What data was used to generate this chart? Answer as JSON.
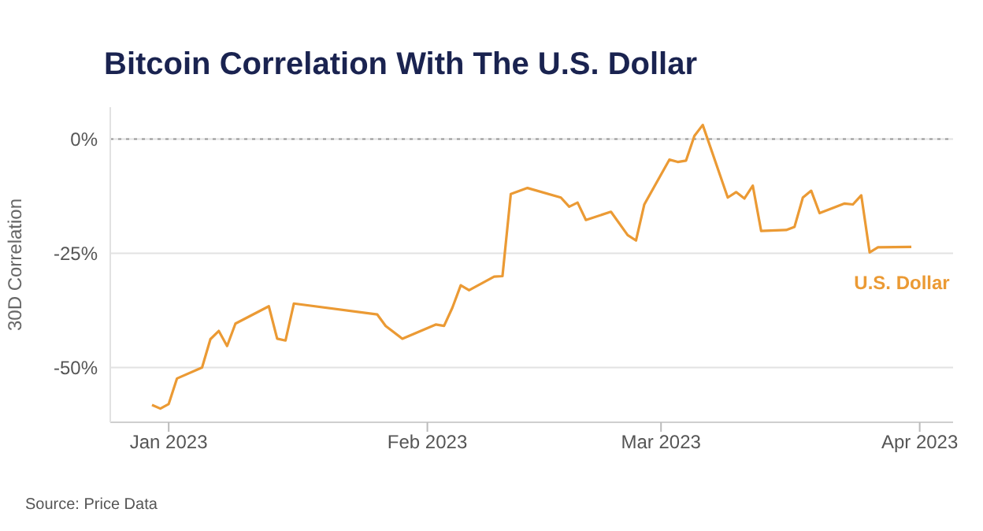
{
  "chart_data": {
    "type": "line",
    "title": "Bitcoin Correlation With The U.S. Dollar",
    "ylabel": "30D Correlation",
    "annotations": [
      "Source: Price Data"
    ],
    "x": [
      "2022-12-30",
      "2022-12-31",
      "2023-01-01",
      "2023-01-02",
      "2023-01-05",
      "2023-01-06",
      "2023-01-07",
      "2023-01-08",
      "2023-01-09",
      "2023-01-13",
      "2023-01-14",
      "2023-01-15",
      "2023-01-16",
      "2023-01-26",
      "2023-01-27",
      "2023-01-29",
      "2023-02-02",
      "2023-02-03",
      "2023-02-04",
      "2023-02-05",
      "2023-02-06",
      "2023-02-09",
      "2023-02-10",
      "2023-02-11",
      "2023-02-13",
      "2023-02-17",
      "2023-02-18",
      "2023-02-19",
      "2023-02-20",
      "2023-02-23",
      "2023-02-25",
      "2023-02-26",
      "2023-02-27",
      "2023-03-02",
      "2023-03-03",
      "2023-03-04",
      "2023-03-05",
      "2023-03-06",
      "2023-03-09",
      "2023-03-10",
      "2023-03-11",
      "2023-03-12",
      "2023-03-13",
      "2023-03-16",
      "2023-03-17",
      "2023-03-18",
      "2023-03-19",
      "2023-03-20",
      "2023-03-23",
      "2023-03-24",
      "2023-03-25",
      "2023-03-26",
      "2023-03-27",
      "2023-03-31"
    ],
    "series": [
      {
        "name": "U.S. Dollar",
        "color": "#eb9a34",
        "values": [
          -58.2,
          -59,
          -58,
          -52.4,
          -50,
          -43.8,
          -42,
          -45.3,
          -40.4,
          -36.6,
          -43.7,
          -44.1,
          -36,
          -38.4,
          -40.9,
          -43.7,
          -40.6,
          -40.9,
          -36.9,
          -32,
          -33.1,
          -30.1,
          -30,
          -12,
          -10.7,
          -12.8,
          -14.8,
          -13.9,
          -17.7,
          -15.9,
          -21,
          -22.2,
          -14.3,
          -4.5,
          -5,
          -4.7,
          0.7,
          3.1,
          -12.8,
          -11.6,
          -13,
          -10.2,
          -20.1,
          -19.9,
          -19.2,
          -12.8,
          -11.3,
          -16.2,
          -14.1,
          -14.3,
          -12.3,
          -24.8,
          -23.7,
          -23.6
        ]
      }
    ],
    "xlim": [
      "2022-12-25",
      "2023-04-05"
    ],
    "xticks": [
      {
        "value": "2023-01-01",
        "label": "Jan 2023"
      },
      {
        "value": "2023-02-01",
        "label": "Feb 2023"
      },
      {
        "value": "2023-03-01",
        "label": "Mar 2023"
      },
      {
        "value": "2023-04-01",
        "label": "Apr 2023"
      }
    ],
    "ylim": [
      -62,
      7
    ],
    "yticks": [
      {
        "value": -50,
        "label": "-50%"
      },
      {
        "value": -25,
        "label": "-25%"
      },
      {
        "value": 0,
        "label": "0%"
      }
    ],
    "ref_lines": [
      {
        "axis": "y",
        "value": 0,
        "color": "#9a9a9a",
        "line_style": "dotted"
      }
    ],
    "grid": "y",
    "legend": false,
    "marker": "none",
    "line_style": "solid"
  }
}
